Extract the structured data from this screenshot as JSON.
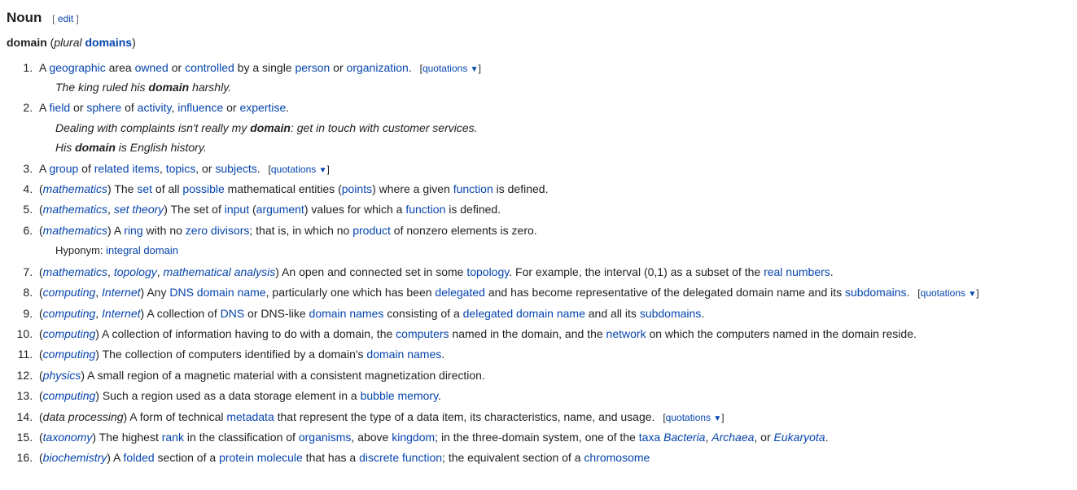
{
  "heading": "Noun",
  "edit_label": "edit",
  "headword": "domain",
  "plural_label": "plural",
  "plural_form": "domains",
  "quotations_label": "quotations",
  "triangle": "▼",
  "hyponym_label": "Hyponym:",
  "defs": [
    {
      "pre": "A ",
      "parts": [
        {
          "t": "link",
          "v": "geographic"
        },
        {
          "t": "text",
          "v": " area "
        },
        {
          "t": "link",
          "v": "owned"
        },
        {
          "t": "text",
          "v": " or "
        },
        {
          "t": "link",
          "v": "controlled"
        },
        {
          "t": "text",
          "v": " by a single "
        },
        {
          "t": "link",
          "v": "person"
        },
        {
          "t": "text",
          "v": " or "
        },
        {
          "t": "link",
          "v": "organization"
        },
        {
          "t": "text",
          "v": "."
        }
      ],
      "quotations": true,
      "examples": [
        [
          {
            "t": "text",
            "v": "The king ruled his "
          },
          {
            "t": "bold",
            "v": "domain"
          },
          {
            "t": "text",
            "v": " harshly."
          }
        ]
      ]
    },
    {
      "pre": "A ",
      "parts": [
        {
          "t": "link",
          "v": "field"
        },
        {
          "t": "text",
          "v": " or "
        },
        {
          "t": "link",
          "v": "sphere"
        },
        {
          "t": "text",
          "v": " of "
        },
        {
          "t": "link",
          "v": "activity"
        },
        {
          "t": "text",
          "v": ", "
        },
        {
          "t": "link",
          "v": "influence"
        },
        {
          "t": "text",
          "v": " or "
        },
        {
          "t": "link",
          "v": "expertise"
        },
        {
          "t": "text",
          "v": "."
        }
      ],
      "examples": [
        [
          {
            "t": "text",
            "v": "Dealing with complaints isn't really my "
          },
          {
            "t": "bold",
            "v": "domain"
          },
          {
            "t": "text",
            "v": ": get in touch with customer services."
          }
        ],
        [
          {
            "t": "text",
            "v": "His "
          },
          {
            "t": "bold",
            "v": "domain"
          },
          {
            "t": "text",
            "v": " is English history."
          }
        ]
      ]
    },
    {
      "pre": "A ",
      "parts": [
        {
          "t": "link",
          "v": "group"
        },
        {
          "t": "text",
          "v": " of "
        },
        {
          "t": "link",
          "v": "related"
        },
        {
          "t": "text",
          "v": " "
        },
        {
          "t": "link",
          "v": "items"
        },
        {
          "t": "text",
          "v": ", "
        },
        {
          "t": "link",
          "v": "topics"
        },
        {
          "t": "text",
          "v": ", or "
        },
        {
          "t": "link",
          "v": "subjects"
        },
        {
          "t": "text",
          "v": "."
        }
      ],
      "quotations": true
    },
    {
      "context": [
        {
          "t": "ilink",
          "v": "mathematics"
        }
      ],
      "parts": [
        {
          "t": "text",
          "v": " The "
        },
        {
          "t": "link",
          "v": "set"
        },
        {
          "t": "text",
          "v": " of all "
        },
        {
          "t": "link",
          "v": "possible"
        },
        {
          "t": "text",
          "v": " mathematical entities ("
        },
        {
          "t": "link",
          "v": "points"
        },
        {
          "t": "text",
          "v": ") where a given "
        },
        {
          "t": "link",
          "v": "function"
        },
        {
          "t": "text",
          "v": " is defined."
        }
      ]
    },
    {
      "context": [
        {
          "t": "ilink",
          "v": "mathematics"
        },
        {
          "t": "text",
          "v": ", "
        },
        {
          "t": "ilink",
          "v": "set theory"
        }
      ],
      "parts": [
        {
          "t": "text",
          "v": " The set of "
        },
        {
          "t": "link",
          "v": "input"
        },
        {
          "t": "text",
          "v": " ("
        },
        {
          "t": "link",
          "v": "argument"
        },
        {
          "t": "text",
          "v": ") values for which a "
        },
        {
          "t": "link",
          "v": "function"
        },
        {
          "t": "text",
          "v": " is defined."
        }
      ]
    },
    {
      "context": [
        {
          "t": "ilink",
          "v": "mathematics"
        }
      ],
      "parts": [
        {
          "t": "text",
          "v": " A "
        },
        {
          "t": "link",
          "v": "ring"
        },
        {
          "t": "text",
          "v": " with no "
        },
        {
          "t": "link",
          "v": "zero divisors"
        },
        {
          "t": "text",
          "v": "; that is, in which no "
        },
        {
          "t": "link",
          "v": "product"
        },
        {
          "t": "text",
          "v": " of nonzero elements is zero."
        }
      ],
      "hyponyms": [
        [
          {
            "t": "link",
            "v": "integral domain"
          }
        ]
      ]
    },
    {
      "context": [
        {
          "t": "ilink",
          "v": "mathematics"
        },
        {
          "t": "text",
          "v": ", "
        },
        {
          "t": "ilink",
          "v": "topology"
        },
        {
          "t": "text",
          "v": ", "
        },
        {
          "t": "ilink",
          "v": "mathematical analysis"
        }
      ],
      "parts": [
        {
          "t": "text",
          "v": " An open and connected set in some "
        },
        {
          "t": "link",
          "v": "topology"
        },
        {
          "t": "text",
          "v": ". For example, the interval (0,1) as a subset of the "
        },
        {
          "t": "link",
          "v": "real numbers"
        },
        {
          "t": "text",
          "v": "."
        }
      ]
    },
    {
      "context": [
        {
          "t": "ilink",
          "v": "computing"
        },
        {
          "t": "text",
          "v": ", "
        },
        {
          "t": "ilink",
          "v": "Internet"
        }
      ],
      "parts": [
        {
          "t": "text",
          "v": " Any "
        },
        {
          "t": "link",
          "v": "DNS"
        },
        {
          "t": "text",
          "v": " "
        },
        {
          "t": "link",
          "v": "domain name"
        },
        {
          "t": "text",
          "v": ", particularly one which has been "
        },
        {
          "t": "link",
          "v": "delegated"
        },
        {
          "t": "text",
          "v": " and has become representative of the delegated domain name and its "
        },
        {
          "t": "link",
          "v": "subdomains"
        },
        {
          "t": "text",
          "v": "."
        }
      ],
      "quotations": true
    },
    {
      "context": [
        {
          "t": "ilink",
          "v": "computing"
        },
        {
          "t": "text",
          "v": ", "
        },
        {
          "t": "ilink",
          "v": "Internet"
        }
      ],
      "parts": [
        {
          "t": "text",
          "v": " A collection of "
        },
        {
          "t": "link",
          "v": "DNS"
        },
        {
          "t": "text",
          "v": " or DNS-like "
        },
        {
          "t": "link",
          "v": "domain names"
        },
        {
          "t": "text",
          "v": " consisting of a "
        },
        {
          "t": "link",
          "v": "delegated"
        },
        {
          "t": "text",
          "v": " "
        },
        {
          "t": "link",
          "v": "domain name"
        },
        {
          "t": "text",
          "v": " and all its "
        },
        {
          "t": "link",
          "v": "subdomains"
        },
        {
          "t": "text",
          "v": "."
        }
      ]
    },
    {
      "context": [
        {
          "t": "ilink",
          "v": "computing"
        }
      ],
      "parts": [
        {
          "t": "text",
          "v": " A collection of information having to do with a domain, the "
        },
        {
          "t": "link",
          "v": "computers"
        },
        {
          "t": "text",
          "v": " named in the domain, and the "
        },
        {
          "t": "link",
          "v": "network"
        },
        {
          "t": "text",
          "v": " on which the computers named in the domain reside."
        }
      ]
    },
    {
      "context": [
        {
          "t": "ilink",
          "v": "computing"
        }
      ],
      "parts": [
        {
          "t": "text",
          "v": " The collection of computers identified by a domain's "
        },
        {
          "t": "link",
          "v": "domain names"
        },
        {
          "t": "text",
          "v": "."
        }
      ]
    },
    {
      "context": [
        {
          "t": "ilink",
          "v": "physics"
        }
      ],
      "parts": [
        {
          "t": "text",
          "v": " A small region of a magnetic material with a consistent magnetization direction."
        }
      ]
    },
    {
      "context": [
        {
          "t": "ilink",
          "v": "computing"
        }
      ],
      "parts": [
        {
          "t": "text",
          "v": " Such a region used as a data storage element in a "
        },
        {
          "t": "link",
          "v": "bubble memory"
        },
        {
          "t": "text",
          "v": "."
        }
      ]
    },
    {
      "context": [
        {
          "t": "itext",
          "v": "data processing"
        }
      ],
      "parts": [
        {
          "t": "text",
          "v": " A form of technical "
        },
        {
          "t": "link",
          "v": "metadata"
        },
        {
          "t": "text",
          "v": " that represent the type of a data item, its characteristics, name, and usage."
        }
      ],
      "quotations": true
    },
    {
      "context": [
        {
          "t": "ilink",
          "v": "taxonomy"
        }
      ],
      "parts": [
        {
          "t": "text",
          "v": " The highest "
        },
        {
          "t": "link",
          "v": "rank"
        },
        {
          "t": "text",
          "v": " in the classification of "
        },
        {
          "t": "link",
          "v": "organisms"
        },
        {
          "t": "text",
          "v": ", above "
        },
        {
          "t": "link",
          "v": "kingdom"
        },
        {
          "t": "text",
          "v": "; in the three-domain system, one of the "
        },
        {
          "t": "link",
          "v": "taxa"
        },
        {
          "t": "text",
          "v": " "
        },
        {
          "t": "ilink",
          "v": "Bacteria"
        },
        {
          "t": "text",
          "v": ", "
        },
        {
          "t": "ilink",
          "v": "Archaea"
        },
        {
          "t": "text",
          "v": ", or "
        },
        {
          "t": "ilink",
          "v": "Eukaryota"
        },
        {
          "t": "text",
          "v": "."
        }
      ]
    },
    {
      "context": [
        {
          "t": "ilink",
          "v": "biochemistry"
        }
      ],
      "parts": [
        {
          "t": "text",
          "v": " A "
        },
        {
          "t": "link",
          "v": "folded"
        },
        {
          "t": "text",
          "v": " section of a "
        },
        {
          "t": "link",
          "v": "protein"
        },
        {
          "t": "text",
          "v": " "
        },
        {
          "t": "link",
          "v": "molecule"
        },
        {
          "t": "text",
          "v": " that has a "
        },
        {
          "t": "link",
          "v": "discrete"
        },
        {
          "t": "text",
          "v": " "
        },
        {
          "t": "link",
          "v": "function"
        },
        {
          "t": "text",
          "v": "; the equivalent section of a "
        },
        {
          "t": "link",
          "v": "chromosome"
        }
      ]
    }
  ]
}
